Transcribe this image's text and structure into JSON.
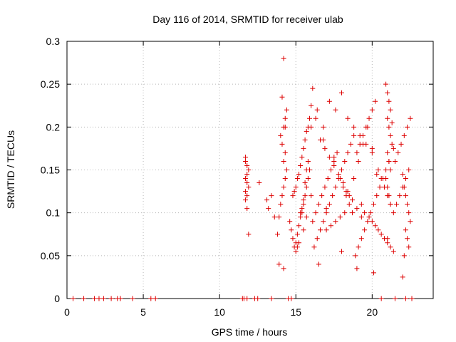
{
  "chart_data": {
    "type": "scatter",
    "title": "Day 116 of 2014, SRMTID for receiver ulab",
    "xlabel": "GPS time / hours",
    "ylabel": "SRMTID / TECUs",
    "xlim": [
      0,
      24
    ],
    "ylim": [
      0,
      0.3
    ],
    "x_ticks": [
      0,
      5,
      10,
      15,
      20
    ],
    "x_tick_labels": [
      "0",
      "5",
      "10",
      "15",
      "20"
    ],
    "y_ticks": [
      0,
      0.05,
      0.1,
      0.15,
      0.2,
      0.25,
      0.3
    ],
    "y_tick_labels": [
      "0",
      "0.05",
      "0.1",
      "0.15",
      "0.2",
      "0.25",
      "0.3"
    ],
    "grid": true,
    "marker": "+",
    "series": [
      {
        "name": "SRMTID",
        "color": "#dd0000",
        "x": [
          0.4,
          1.1,
          1.8,
          2.1,
          2.4,
          2.9,
          3.3,
          3.5,
          3.5,
          4.3,
          5.5,
          5.8,
          11.5,
          11.6,
          11.8,
          12.3,
          12.5,
          13.4,
          14.5,
          14.7,
          20.6,
          21.5,
          22.2,
          22.6,
          11.7,
          11.7,
          11.8,
          11.9,
          11.8,
          11.7,
          11.8,
          11.9,
          11.7,
          11.8,
          11.7,
          11.8,
          11.9,
          12.6,
          13.1,
          13.2,
          13.4,
          13.6,
          13.8,
          13.9,
          13.9,
          14.0,
          14.1,
          14.2,
          14.3,
          14.4,
          14.2,
          14.3,
          14.1,
          14.0,
          14.2,
          14.3,
          14.4,
          14.1,
          14.2,
          14.6,
          14.7,
          14.8,
          14.9,
          15.0,
          15.1,
          15.2,
          15.3,
          15.4,
          15.5,
          15.6,
          15.7,
          15.8,
          15.9,
          14.8,
          14.9,
          15.0,
          15.1,
          15.2,
          15.3,
          15.4,
          15.5,
          15.6,
          15.7,
          15.8,
          15.9,
          16.0,
          16.1,
          15.0,
          15.1,
          15.2,
          15.3,
          15.4,
          15.5,
          15.6,
          15.7,
          15.8,
          16.1,
          16.3,
          16.5,
          16.7,
          16.9,
          17.1,
          17.3,
          17.5,
          17.7,
          17.9,
          18.1,
          18.3,
          18.5,
          18.7,
          16.2,
          16.4,
          16.6,
          16.8,
          17.0,
          17.2,
          17.4,
          17.6,
          17.8,
          18.0,
          18.2,
          18.4,
          18.6,
          18.8,
          16.0,
          16.3,
          16.6,
          16.9,
          17.2,
          17.5,
          17.8,
          18.1,
          18.4,
          18.7,
          19.0,
          19.3,
          17.0,
          17.3,
          17.6,
          17.9,
          18.2,
          18.5,
          18.8,
          19.1,
          19.4,
          19.7,
          16.4,
          16.8,
          17.2,
          17.6,
          18.0,
          18.4,
          18.8,
          19.2,
          19.6,
          20.0,
          18.9,
          19.1,
          19.3,
          19.5,
          19.7,
          19.9,
          20.1,
          20.3,
          20.5,
          20.7,
          20.9,
          21.1,
          19.0,
          19.2,
          19.4,
          19.6,
          19.8,
          20.0,
          20.2,
          20.4,
          20.6,
          20.8,
          21.0,
          21.2,
          19.5,
          19.8,
          20.0,
          20.2,
          20.4,
          20.6,
          20.8,
          21.0,
          21.2,
          21.4,
          20.9,
          21.0,
          21.1,
          21.2,
          21.0,
          21.1,
          21.2,
          21.3,
          21.0,
          21.1,
          21.2,
          20.9,
          21.0,
          21.1,
          21.2,
          21.4,
          21.6,
          21.8,
          22.0,
          22.2,
          22.4,
          21.5,
          21.7,
          21.9,
          22.1,
          22.3,
          22.5,
          22.0,
          22.1,
          22.2,
          22.3,
          22.4,
          22.5,
          22.2,
          22.3,
          22.4,
          22.1,
          14.2,
          16.5,
          18.0,
          19.0,
          20.1,
          21.0,
          21.3,
          20.0,
          17.5,
          15.5,
          14.3,
          16.0,
          19.3,
          18.3,
          17.0,
          20.3,
          21.4,
          22.0,
          15.7,
          16.8
        ],
        "y": [
          0,
          0,
          0,
          0,
          0,
          0,
          0,
          0,
          0,
          0,
          0,
          0,
          0,
          0,
          0,
          0,
          0,
          0,
          0,
          0,
          0,
          0,
          0,
          0,
          0.165,
          0.16,
          0.155,
          0.15,
          0.145,
          0.14,
          0.135,
          0.13,
          0.125,
          0.12,
          0.115,
          0.105,
          0.075,
          0.135,
          0.115,
          0.105,
          0.12,
          0.095,
          0.075,
          0.04,
          0.095,
          0.11,
          0.12,
          0.13,
          0.14,
          0.15,
          0.16,
          0.17,
          0.18,
          0.19,
          0.2,
          0.21,
          0.22,
          0.235,
          0.28,
          0.09,
          0.08,
          0.07,
          0.06,
          0.065,
          0.075,
          0.085,
          0.095,
          0.1,
          0.11,
          0.12,
          0.13,
          0.14,
          0.15,
          0.12,
          0.125,
          0.13,
          0.14,
          0.145,
          0.155,
          0.165,
          0.175,
          0.185,
          0.195,
          0.2,
          0.21,
          0.225,
          0.245,
          0.055,
          0.06,
          0.065,
          0.1,
          0.105,
          0.115,
          0.135,
          0.15,
          0.16,
          0.09,
          0.1,
          0.11,
          0.12,
          0.13,
          0.14,
          0.15,
          0.16,
          0.17,
          0.14,
          0.13,
          0.12,
          0.11,
          0.1,
          0.06,
          0.07,
          0.08,
          0.09,
          0.1,
          0.11,
          0.12,
          0.13,
          0.14,
          0.15,
          0.16,
          0.17,
          0.18,
          0.19,
          0.2,
          0.21,
          0.185,
          0.175,
          0.165,
          0.155,
          0.145,
          0.135,
          0.125,
          0.115,
          0.105,
          0.095,
          0.08,
          0.085,
          0.09,
          0.095,
          0.1,
          0.12,
          0.14,
          0.16,
          0.18,
          0.2,
          0.22,
          0.2,
          0.23,
          0.22,
          0.24,
          0.21,
          0.2,
          0.19,
          0.18,
          0.17,
          0.05,
          0.06,
          0.07,
          0.08,
          0.09,
          0.1,
          0.11,
          0.12,
          0.13,
          0.14,
          0.15,
          0.16,
          0.17,
          0.18,
          0.19,
          0.2,
          0.21,
          0.22,
          0.23,
          0.15,
          0.14,
          0.13,
          0.12,
          0.11,
          0.1,
          0.095,
          0.09,
          0.085,
          0.08,
          0.075,
          0.07,
          0.065,
          0.06,
          0.055,
          0.25,
          0.24,
          0.23,
          0.22,
          0.21,
          0.2,
          0.19,
          0.18,
          0.17,
          0.16,
          0.15,
          0.14,
          0.13,
          0.12,
          0.11,
          0.1,
          0.11,
          0.12,
          0.13,
          0.14,
          0.15,
          0.16,
          0.17,
          0.18,
          0.19,
          0.2,
          0.21,
          0.145,
          0.13,
          0.12,
          0.11,
          0.1,
          0.09,
          0.08,
          0.07,
          0.06,
          0.05,
          0.035,
          0.04,
          0.055,
          0.035,
          0.03,
          0.07,
          0.205,
          0.175,
          0.165,
          0.08,
          0.2,
          0.12,
          0.11,
          0.125,
          0.105,
          0.145,
          0.175,
          0.025,
          0.095,
          0.185
        ]
      }
    ]
  }
}
